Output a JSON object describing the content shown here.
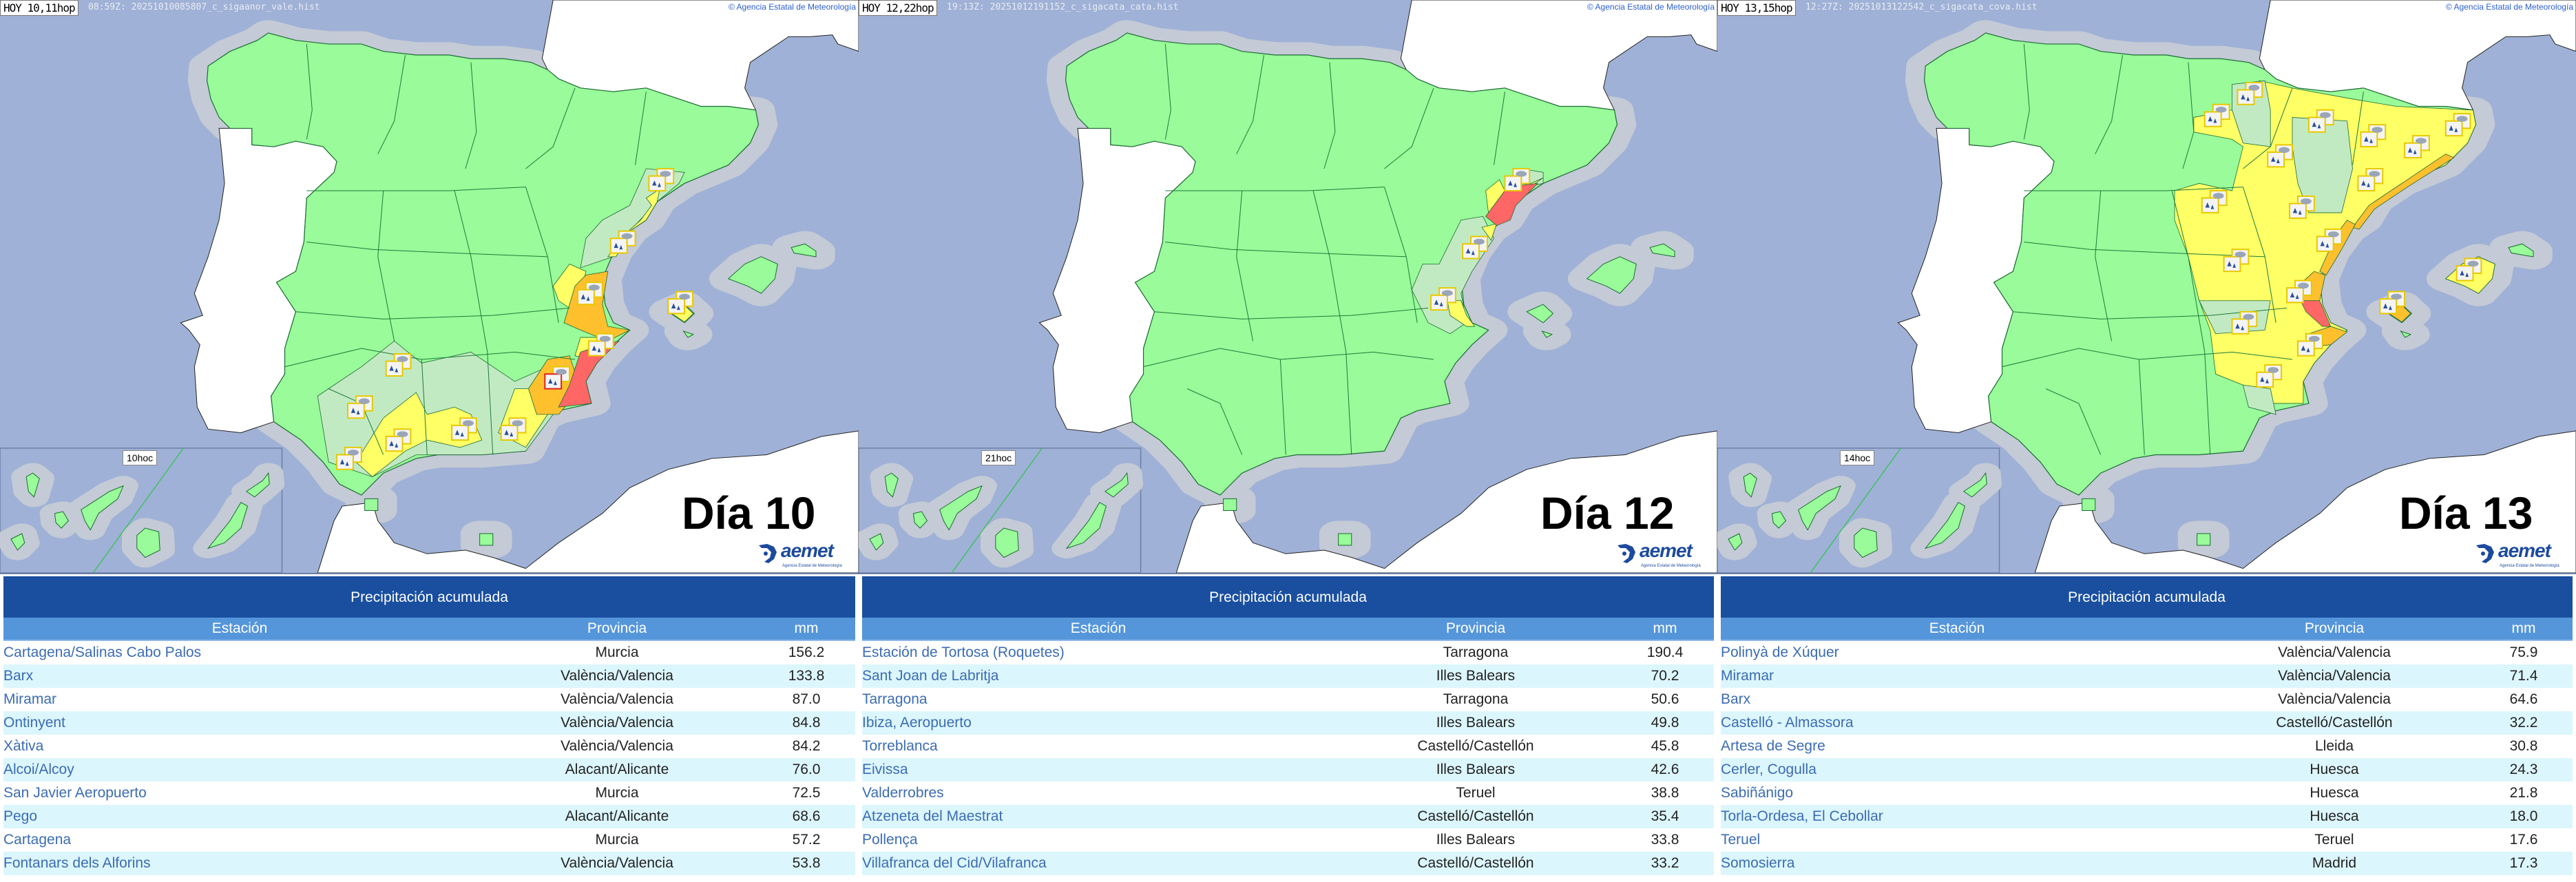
{
  "colors": {
    "sea": "#9fb1d6",
    "buffer": "#c4cad6",
    "foreign_land": "#ffffff",
    "no_warning": "#99fb99",
    "no_warning_light": "#c2eac2",
    "yellow": "#ffff66",
    "orange": "#ffc02e",
    "red": "#ff6666",
    "table_title_bg": "#1a4fa0",
    "table_header_bg": "#5596db",
    "row_alt_bg": "#dcf6fd"
  },
  "panels": [
    {
      "hoy_label": "HOY 10,11hop",
      "file_label": "08:59Z: 20251010085807_c_sigaanor_vale.hist",
      "credit": "© Agencia Estatal de Meteorología",
      "day_label": "Día 10",
      "inset_label": "10hoc",
      "logo_word": "aemet",
      "logo_sub": "Agencia Estatal de Meteorología",
      "table": {
        "title": "Precipitación acumulada",
        "columns": [
          "Estación",
          "Provincia",
          "mm"
        ],
        "rows": [
          {
            "station": "Cartagena/Salinas Cabo Palos",
            "province": "Murcia",
            "mm": "156.2"
          },
          {
            "station": "Barx",
            "province": "València/Valencia",
            "mm": "133.8"
          },
          {
            "station": "Miramar",
            "province": "València/Valencia",
            "mm": "87.0"
          },
          {
            "station": "Ontinyent",
            "province": "València/Valencia",
            "mm": "84.8"
          },
          {
            "station": "Xàtiva",
            "province": "València/Valencia",
            "mm": "84.2"
          },
          {
            "station": "Alcoi/Alcoy",
            "province": "Alacant/Alicante",
            "mm": "76.0"
          },
          {
            "station": "San Javier Aeropuerto",
            "province": "Murcia",
            "mm": "72.5"
          },
          {
            "station": "Pego",
            "province": "Alacant/Alicante",
            "mm": "68.6"
          },
          {
            "station": "Cartagena",
            "province": "Murcia",
            "mm": "57.2"
          },
          {
            "station": "Fontanars dels Alforins",
            "province": "València/Valencia",
            "mm": "53.8"
          }
        ]
      }
    },
    {
      "hoy_label": "HOY 12,22hop",
      "file_label": "19:13Z: 20251012191152_c_sigacata_cata.hist",
      "credit": "© Agencia Estatal de Meteorología",
      "day_label": "Día 12",
      "inset_label": "21hoc",
      "logo_word": "aemet",
      "logo_sub": "Agencia Estatal de Meteorología",
      "table": {
        "title": "Precipitación acumulada",
        "columns": [
          "Estación",
          "Provincia",
          "mm"
        ],
        "rows": [
          {
            "station": "Estación de Tortosa (Roquetes)",
            "province": "Tarragona",
            "mm": "190.4"
          },
          {
            "station": "Sant Joan de Labritja",
            "province": "Illes Balears",
            "mm": "70.2"
          },
          {
            "station": "Tarragona",
            "province": "Tarragona",
            "mm": "50.6"
          },
          {
            "station": "Ibiza, Aeropuerto",
            "province": "Illes Balears",
            "mm": "49.8"
          },
          {
            "station": "Torreblanca",
            "province": "Castelló/Castellón",
            "mm": "45.8"
          },
          {
            "station": "Eivissa",
            "province": "Illes Balears",
            "mm": "42.6"
          },
          {
            "station": "Valderrobres",
            "province": "Teruel",
            "mm": "38.8"
          },
          {
            "station": "Atzeneta del Maestrat",
            "province": "Castelló/Castellón",
            "mm": "35.4"
          },
          {
            "station": "Pollença",
            "province": "Illes Balears",
            "mm": "33.8"
          },
          {
            "station": "Villafranca del Cid/Vilafranca",
            "province": "Castelló/Castellón",
            "mm": "33.2"
          }
        ]
      }
    },
    {
      "hoy_label": "HOY 13,15hop",
      "file_label": "12:27Z: 20251013122542_c_sigacata_cova.hist",
      "credit": "© Agencia Estatal de Meteorología",
      "day_label": "Día 13",
      "inset_label": "14hoc",
      "logo_word": "aemet",
      "logo_sub": "Agencia Estatal de Meteorología",
      "table": {
        "title": "Precipitación acumulada",
        "columns": [
          "Estación",
          "Provincia",
          "mm"
        ],
        "rows": [
          {
            "station": "Polinyà de Xúquer",
            "province": "València/Valencia",
            "mm": "75.9"
          },
          {
            "station": "Miramar",
            "province": "València/Valencia",
            "mm": "71.4"
          },
          {
            "station": "Barx",
            "province": "València/Valencia",
            "mm": "64.6"
          },
          {
            "station": "Castelló - Almassora",
            "province": "Castelló/Castellón",
            "mm": "32.2"
          },
          {
            "station": "Artesa de Segre",
            "province": "Lleida",
            "mm": "30.8"
          },
          {
            "station": "Cerler, Cogulla",
            "province": "Huesca",
            "mm": "24.3"
          },
          {
            "station": "Sabiñánigo",
            "province": "Huesca",
            "mm": "21.8"
          },
          {
            "station": "Torla-Ordesa, El Cebollar",
            "province": "Huesca",
            "mm": "18.0"
          },
          {
            "station": "Teruel",
            "province": "Teruel",
            "mm": "17.6"
          },
          {
            "station": "Somosierra",
            "province": "Madrid",
            "mm": "17.3"
          }
        ]
      }
    }
  ]
}
